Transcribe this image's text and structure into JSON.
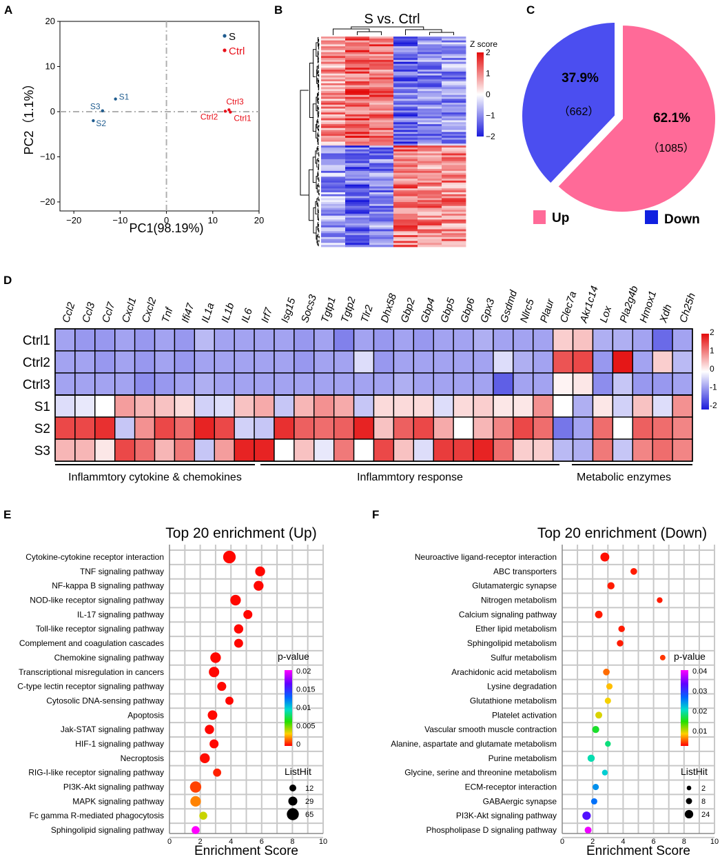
{
  "colors": {
    "s_blue": "#1f5c8f",
    "ctrl_red": "#e8101a",
    "pie_up": "#ff6a98",
    "pie_down": "#4b4ef0",
    "legend_down": "#1020e0",
    "heat_neg": "#1a1adb",
    "heat_mid": "#ffffff",
    "heat_pos": "#e40b0b",
    "grid": "#c8c8c8"
  },
  "chart_data": [
    {
      "panel": "A",
      "type": "scatter",
      "xlabel": "PC1(98.19%)",
      "ylabel": "PC2（1.1%）",
      "xlim": [
        -23,
        20
      ],
      "ylim": [
        -22,
        20
      ],
      "xticks": [
        -20,
        -10,
        0,
        10,
        20
      ],
      "yticks": [
        20,
        10,
        0,
        -10,
        -20
      ],
      "legend": [
        {
          "name": "S",
          "color_key": "s_blue"
        },
        {
          "name": "Ctrl",
          "color_key": "ctrl_red"
        }
      ],
      "points": [
        {
          "label": "S1",
          "group": "S",
          "x": -11,
          "y": 2.8
        },
        {
          "label": "S3",
          "group": "S",
          "x": -13.8,
          "y": 0.2
        },
        {
          "label": "S2",
          "group": "S",
          "x": -15.8,
          "y": -2
        },
        {
          "label": "Ctrl3",
          "group": "Ctrl",
          "x": 13.5,
          "y": 0.4
        },
        {
          "label": "Ctrl2",
          "group": "Ctrl",
          "x": 12.7,
          "y": 0.1
        },
        {
          "label": "Ctrl1",
          "group": "Ctrl",
          "x": 13.8,
          "y": -0.1
        }
      ]
    },
    {
      "panel": "B",
      "type": "heatmap",
      "title": "S vs. Ctrl",
      "legend_title": "Z score",
      "legend_ticks": [
        "2",
        "1",
        "0",
        "−1",
        "−2"
      ],
      "columns": 6,
      "clusters": [
        {
          "name": "higher in first three columns",
          "share": 0.52,
          "col_values": [
            0.9,
            1.3,
            1.2,
            -1.3,
            -1.0,
            -0.9
          ]
        },
        {
          "name": "higher in last three columns",
          "share": 0.48,
          "col_values": [
            -0.8,
            -1.3,
            -1.0,
            1.1,
            1.0,
            1.0
          ]
        }
      ]
    },
    {
      "panel": "C",
      "type": "pie",
      "slices": [
        {
          "name": "Up",
          "percent_label": "62.1%",
          "count_label": "（1085）",
          "value": 1085,
          "color_key": "pie_up"
        },
        {
          "name": "Down",
          "percent_label": "37.9%",
          "count_label": "（662）",
          "value": 662,
          "color_key": "pie_down"
        }
      ],
      "legend": [
        "Up",
        "Down"
      ]
    },
    {
      "panel": "D",
      "type": "heatmap",
      "genes": [
        "Ccl2",
        "Ccl3",
        "Ccl7",
        "Cxcl1",
        "Cxcl2",
        "Tnf",
        "Ifi47",
        "IL1a",
        "IL1b",
        "IL6",
        "Irf7",
        "Isg15",
        "Socs3",
        "Tgtp1",
        "Tgtp2",
        "Tlr2",
        "Dhx58",
        "Gbp2",
        "Gbp4",
        "Gbp5",
        "Gbp6",
        "Gpx3",
        "Gsdmd",
        "Nlrc5",
        "Plaur",
        "Clec7a",
        "Akr1c14",
        "Lox",
        "Pla2g4b",
        "Hmox1",
        "Xdh",
        "Ch25h"
      ],
      "samples": [
        "Ctrl1",
        "Ctrl2",
        "Ctrl3",
        "S1",
        "S2",
        "S3"
      ],
      "values": [
        [
          -0.8,
          -0.9,
          -0.9,
          -0.8,
          -0.9,
          -0.8,
          -0.9,
          -0.6,
          -0.8,
          -0.8,
          -0.8,
          -0.8,
          -0.9,
          -0.8,
          -1.1,
          -0.8,
          -0.9,
          -0.8,
          -0.9,
          -0.8,
          -0.8,
          -0.7,
          -0.8,
          -0.8,
          -0.8,
          0.4,
          0.5,
          -0.7,
          -0.7,
          -0.8,
          -1.3,
          -0.8
        ],
        [
          -0.8,
          -0.8,
          -0.9,
          -0.8,
          -0.9,
          -0.8,
          -0.9,
          -0.8,
          -0.8,
          -0.8,
          -0.8,
          -0.8,
          -0.9,
          -0.8,
          -0.8,
          -0.3,
          -0.9,
          -0.8,
          -0.8,
          -0.8,
          -0.8,
          -0.8,
          -0.3,
          -0.7,
          -0.8,
          1.4,
          1.5,
          -0.9,
          1.9,
          -0.8,
          0.4,
          -0.6
        ],
        [
          -0.8,
          -0.8,
          -0.8,
          -0.8,
          -1.0,
          -0.9,
          -0.8,
          -0.7,
          -0.8,
          -0.8,
          -0.8,
          -0.8,
          -0.8,
          -0.8,
          -0.8,
          -0.8,
          -0.8,
          -0.7,
          -0.8,
          -0.8,
          -0.8,
          -0.8,
          -1.4,
          -0.8,
          -0.8,
          0.1,
          0.2,
          -1.0,
          -0.5,
          -0.9,
          -0.9,
          -0.8
        ],
        [
          -0.3,
          -0.2,
          0.0,
          0.8,
          0.6,
          0.5,
          0.3,
          -0.4,
          -0.3,
          0.5,
          0.7,
          -0.5,
          0.6,
          0.9,
          0.7,
          -0.5,
          0.3,
          0.3,
          0.3,
          -0.3,
          0.3,
          0.4,
          0.2,
          0.2,
          0.9,
          0.0,
          -0.7,
          0.2,
          -0.4,
          0.5,
          -0.3,
          0.9
        ],
        [
          1.5,
          1.5,
          1.7,
          -0.5,
          0.9,
          1.5,
          1.2,
          1.8,
          1.5,
          -0.4,
          -0.5,
          1.7,
          1.3,
          1.2,
          1.3,
          1.8,
          0.5,
          1.3,
          1.5,
          0.7,
          0.0,
          0.6,
          1.0,
          1.5,
          1.2,
          -1.2,
          -0.8,
          1.2,
          0.0,
          1.3,
          1.2,
          1.0
        ],
        [
          0.6,
          0.6,
          0.2,
          1.5,
          1.2,
          0.6,
          1.1,
          -0.5,
          0.8,
          1.8,
          1.8,
          0.0,
          0.5,
          -0.2,
          1.1,
          0.0,
          1.5,
          0.5,
          -0.3,
          1.6,
          1.6,
          1.8,
          1.2,
          0.4,
          0.4,
          -0.6,
          -0.7,
          1.1,
          -0.5,
          1.0,
          1.2,
          1.0
        ]
      ],
      "legend_ticks": [
        "2",
        "1",
        "0",
        "-1",
        "-2"
      ],
      "groups": [
        {
          "label": "Inflammtory cytokine & chemokines",
          "from": 0,
          "to": 10
        },
        {
          "label": "Inflammtory response",
          "from": 11,
          "to": 24
        },
        {
          "label": "Metabolic enzymes",
          "from": 25,
          "to": 31
        }
      ]
    },
    {
      "panel": "E",
      "type": "scatter",
      "title": "Top 20 enrichment (Up)",
      "xlabel": "Enrichment Score",
      "xlim": [
        0,
        10
      ],
      "xticks": [
        0,
        2,
        4,
        6,
        8,
        10
      ],
      "legend_color_title": "p-value",
      "legend_color_ticks": [
        "0.02",
        "0.015",
        "0.01",
        "0.005",
        "0"
      ],
      "pmax": 0.02,
      "legend_size_title": "ListHit",
      "legend_sizes": [
        12,
        29,
        65
      ],
      "terms": [
        {
          "name": "Cytokine-cytokine receptor interaction",
          "x": 3.9,
          "p": 0.0001,
          "hits": 65
        },
        {
          "name": "TNF signaling pathway",
          "x": 5.9,
          "p": 0.0001,
          "hits": 33
        },
        {
          "name": "NF-kappa B signaling pathway",
          "x": 5.8,
          "p": 0.0001,
          "hits": 33
        },
        {
          "name": "NOD-like receptor signaling pathway",
          "x": 4.3,
          "p": 0.0001,
          "hits": 40
        },
        {
          "name": "IL-17 signaling pathway",
          "x": 5.1,
          "p": 0.0001,
          "hits": 25
        },
        {
          "name": "Toll-like receptor signaling pathway",
          "x": 4.5,
          "p": 0.0001,
          "hits": 27
        },
        {
          "name": "Complement and coagulation cascades",
          "x": 4.5,
          "p": 0.0001,
          "hits": 24
        },
        {
          "name": "Chemokine signaling pathway",
          "x": 3.0,
          "p": 0.0001,
          "hits": 40
        },
        {
          "name": "Transcriptional misregulation in cancers",
          "x": 2.9,
          "p": 0.0001,
          "hits": 38
        },
        {
          "name": "C-type lectin receptor signaling pathway",
          "x": 3.4,
          "p": 0.0001,
          "hits": 25
        },
        {
          "name": "Cytosolic DNA-sensing pathway",
          "x": 3.9,
          "p": 0.0001,
          "hits": 18
        },
        {
          "name": "Apoptosis",
          "x": 2.8,
          "p": 0.0001,
          "hits": 30
        },
        {
          "name": "Jak-STAT signaling pathway",
          "x": 2.6,
          "p": 0.0001,
          "hits": 27
        },
        {
          "name": "HIF-1 signaling pathway",
          "x": 2.9,
          "p": 0.0001,
          "hits": 25
        },
        {
          "name": "Necroptosis",
          "x": 2.3,
          "p": 0.0002,
          "hits": 33
        },
        {
          "name": "RIG-I-like receptor signaling pathway",
          "x": 3.1,
          "p": 0.0005,
          "hits": 18
        },
        {
          "name": "PI3K-Akt signaling pathway",
          "x": 1.7,
          "p": 0.001,
          "hits": 48
        },
        {
          "name": "MAPK signaling pathway",
          "x": 1.7,
          "p": 0.002,
          "hits": 40
        },
        {
          "name": "Fc gamma R-mediated phagocytosis",
          "x": 2.2,
          "p": 0.004,
          "hits": 17
        },
        {
          "name": "Sphingolipid signaling pathway",
          "x": 1.7,
          "p": 0.02,
          "hits": 17
        }
      ]
    },
    {
      "panel": "F",
      "type": "scatter",
      "title": "Top 20 enrichment (Down)",
      "xlabel": "Enrichment Score",
      "xlim": [
        0,
        10
      ],
      "xticks": [
        0,
        2,
        4,
        6,
        8,
        10
      ],
      "legend_color_title": "p-value",
      "legend_color_ticks": [
        "0.04",
        "0.03",
        "0.02",
        "0.01"
      ],
      "pmax": 0.048,
      "legend_size_title": "ListHit",
      "legend_sizes": [
        2,
        8,
        24
      ],
      "terms": [
        {
          "name": "Neuroactive ligand-receptor interaction",
          "x": 2.8,
          "p": 0.0005,
          "hits": 24
        },
        {
          "name": "ABC transporters",
          "x": 4.7,
          "p": 0.001,
          "hits": 9
        },
        {
          "name": "Glutamatergic synapse",
          "x": 3.2,
          "p": 0.001,
          "hits": 12
        },
        {
          "name": "Nitrogen metabolism",
          "x": 6.4,
          "p": 0.001,
          "hits": 5
        },
        {
          "name": "Calcium signaling pathway",
          "x": 2.4,
          "p": 0.001,
          "hits": 14
        },
        {
          "name": "Ether lipid metabolism",
          "x": 3.9,
          "p": 0.001,
          "hits": 8
        },
        {
          "name": "Sphingolipid metabolism",
          "x": 3.8,
          "p": 0.001,
          "hits": 8
        },
        {
          "name": "Sulfur metabolism",
          "x": 6.6,
          "p": 0.002,
          "hits": 4
        },
        {
          "name": "Arachidonic acid metabolism",
          "x": 2.9,
          "p": 0.004,
          "hits": 9
        },
        {
          "name": "Lysine degradation",
          "x": 3.1,
          "p": 0.007,
          "hits": 7
        },
        {
          "name": "Glutathione metabolism",
          "x": 3.0,
          "p": 0.008,
          "hits": 7
        },
        {
          "name": "Platelet activation",
          "x": 2.4,
          "p": 0.009,
          "hits": 10
        },
        {
          "name": "Vascular smooth muscle contraction",
          "x": 2.2,
          "p": 0.017,
          "hits": 11
        },
        {
          "name": "Alanine, aspartate and glutamate metabolism",
          "x": 3.0,
          "p": 0.02,
          "hits": 5
        },
        {
          "name": "Purine metabolism",
          "x": 1.9,
          "p": 0.022,
          "hits": 12
        },
        {
          "name": "Glycine, serine and threonine metabolism",
          "x": 2.8,
          "p": 0.024,
          "hits": 5
        },
        {
          "name": "ECM-receptor interaction",
          "x": 2.2,
          "p": 0.028,
          "hits": 7
        },
        {
          "name": "GABAergic synapse",
          "x": 2.1,
          "p": 0.03,
          "hits": 7
        },
        {
          "name": "PI3K-Akt signaling pathway",
          "x": 1.6,
          "p": 0.038,
          "hits": 20
        },
        {
          "name": "Phospholipase D signaling pathway",
          "x": 1.7,
          "p": 0.047,
          "hits": 10
        }
      ]
    }
  ]
}
